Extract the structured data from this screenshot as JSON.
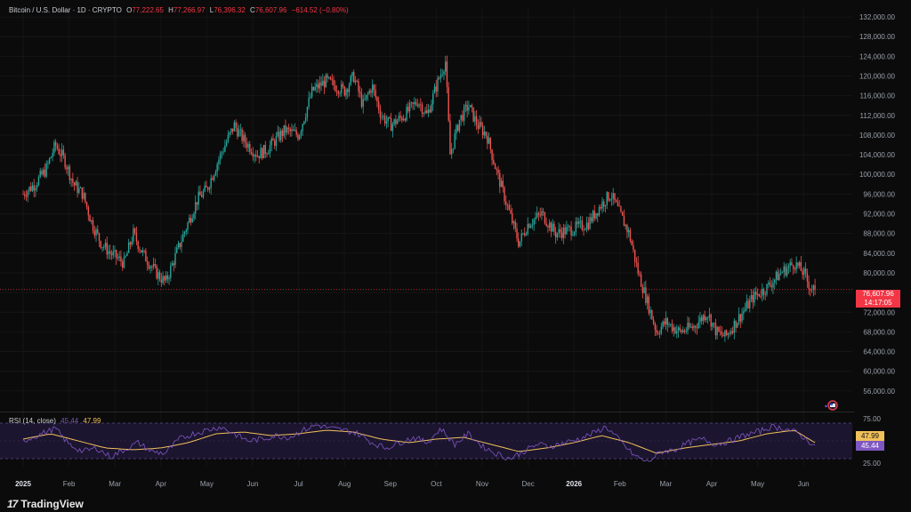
{
  "header": {
    "symbol": "Bitcoin / U.S. Dollar · 1D · CRYPTO",
    "o_label": "O",
    "o_value": "77,222.65",
    "h_label": "H",
    "h_value": "77,266.97",
    "l_label": "L",
    "l_value": "76,396.32",
    "c_label": "C",
    "c_value": "76,607.96",
    "change": "−614.52 (−0.80%)"
  },
  "price_tag": {
    "price": "76,607.96",
    "countdown": "14:17:05"
  },
  "rsi_header": {
    "label": "RSI (14, close)",
    "rsi": "45.44",
    "ma": "47.99"
  },
  "rsi_tags": {
    "ma": "47.99",
    "rsi": "45.44"
  },
  "brand": {
    "name": "TradingView"
  },
  "colors": {
    "up": "#26a69a",
    "down": "#ef5350",
    "rsi_line": "#7e57c2",
    "rsi_ma": "#f0c05a",
    "price_line": "#f23645",
    "band_fill": "#1c1530"
  },
  "icons": [
    "tradingview-logo-icon",
    "watchlist-flag-icon"
  ],
  "chart_data": [
    {
      "type": "candlestick",
      "title": "Bitcoin / U.S. Dollar · 1D · CRYPTO",
      "ylim": [
        52000,
        134000
      ],
      "y_ticks": [
        "132,000.00",
        "128,000.00",
        "124,000.00",
        "120,000.00",
        "116,000.00",
        "112,000.00",
        "108,000.00",
        "104,000.00",
        "100,000.00",
        "96,000.00",
        "92,000.00",
        "88,000.00",
        "84,000.00",
        "80,000.00",
        "76,000.00",
        "72,000.00",
        "68,000.00",
        "64,000.00",
        "60,000.00",
        "56,000.00"
      ],
      "x_labels": [
        "2025",
        "Feb",
        "Mar",
        "Apr",
        "May",
        "Jun",
        "Jul",
        "Aug",
        "Sep",
        "Oct",
        "Nov",
        "Dec",
        "2026",
        "Feb",
        "Mar",
        "Apr",
        "May",
        "Jun"
      ],
      "x_label_month_index": [
        0,
        1,
        2,
        3,
        4,
        5,
        6,
        7,
        8,
        9,
        10,
        11,
        12,
        13,
        14,
        15,
        16,
        17
      ],
      "last_price": 76607.96,
      "price_path_approx": [
        [
          0.0,
          96000
        ],
        [
          0.25,
          98000
        ],
        [
          0.5,
          101000
        ],
        [
          0.7,
          106000
        ],
        [
          0.9,
          103000
        ],
        [
          1.1,
          98000
        ],
        [
          1.3,
          96000
        ],
        [
          1.5,
          90000
        ],
        [
          1.7,
          86000
        ],
        [
          1.9,
          84000
        ],
        [
          2.2,
          82000
        ],
        [
          2.4,
          88000
        ],
        [
          2.6,
          84000
        ],
        [
          2.9,
          80000
        ],
        [
          3.1,
          78000
        ],
        [
          3.3,
          83000
        ],
        [
          3.5,
          88000
        ],
        [
          3.8,
          95000
        ],
        [
          4.0,
          97000
        ],
        [
          4.3,
          104000
        ],
        [
          4.6,
          110000
        ],
        [
          4.8,
          107000
        ],
        [
          5.1,
          104000
        ],
        [
          5.3,
          105000
        ],
        [
          5.5,
          107000
        ],
        [
          5.7,
          109000
        ],
        [
          6.0,
          108000
        ],
        [
          6.3,
          117000
        ],
        [
          6.6,
          119000
        ],
        [
          7.0,
          117000
        ],
        [
          7.2,
          120000
        ],
        [
          7.4,
          114000
        ],
        [
          7.6,
          118000
        ],
        [
          7.8,
          112000
        ],
        [
          8.0,
          110000
        ],
        [
          8.3,
          112000
        ],
        [
          8.6,
          115000
        ],
        [
          8.8,
          112000
        ],
        [
          9.0,
          118000
        ],
        [
          9.2,
          123000
        ],
        [
          9.3,
          104000
        ],
        [
          9.5,
          111000
        ],
        [
          9.7,
          114000
        ],
        [
          9.9,
          110000
        ],
        [
          10.1,
          108000
        ],
        [
          10.3,
          101000
        ],
        [
          10.5,
          95000
        ],
        [
          10.8,
          86000
        ],
        [
          11.0,
          90000
        ],
        [
          11.3,
          92000
        ],
        [
          11.6,
          88000
        ],
        [
          12.0,
          89000
        ],
        [
          12.3,
          90000
        ],
        [
          12.6,
          94000
        ],
        [
          12.8,
          96000
        ],
        [
          13.0,
          92000
        ],
        [
          13.2,
          88000
        ],
        [
          13.4,
          80000
        ],
        [
          13.6,
          74000
        ],
        [
          13.8,
          68000
        ],
        [
          14.0,
          70000
        ],
        [
          14.3,
          68000
        ],
        [
          14.6,
          69000
        ],
        [
          14.9,
          72000
        ],
        [
          15.1,
          68000
        ],
        [
          15.3,
          67000
        ],
        [
          15.6,
          71000
        ],
        [
          15.9,
          75000
        ],
        [
          16.2,
          77000
        ],
        [
          16.5,
          80000
        ],
        [
          16.8,
          82000
        ],
        [
          17.0,
          80000
        ],
        [
          17.15,
          77000
        ],
        [
          17.25,
          76607.96
        ]
      ]
    },
    {
      "type": "line",
      "title": "RSI (14, close)",
      "ylim": [
        20,
        80
      ],
      "y_ticks": [
        "75.00",
        "25.00"
      ],
      "bands": [
        70,
        30
      ],
      "series": [
        {
          "name": "RSI",
          "last": 45.44
        },
        {
          "name": "MA",
          "last": 47.99
        }
      ],
      "rsi_path_approx": [
        [
          0.0,
          50
        ],
        [
          0.4,
          58
        ],
        [
          0.7,
          64
        ],
        [
          1.0,
          46
        ],
        [
          1.3,
          38
        ],
        [
          1.6,
          42
        ],
        [
          1.9,
          32
        ],
        [
          2.2,
          40
        ],
        [
          2.5,
          48
        ],
        [
          2.8,
          38
        ],
        [
          3.1,
          36
        ],
        [
          3.4,
          52
        ],
        [
          3.7,
          58
        ],
        [
          4.0,
          62
        ],
        [
          4.3,
          66
        ],
        [
          4.6,
          58
        ],
        [
          4.9,
          50
        ],
        [
          5.2,
          52
        ],
        [
          5.5,
          56
        ],
        [
          5.8,
          54
        ],
        [
          6.1,
          62
        ],
        [
          6.4,
          68
        ],
        [
          6.7,
          64
        ],
        [
          7.0,
          62
        ],
        [
          7.3,
          58
        ],
        [
          7.6,
          48
        ],
        [
          7.9,
          42
        ],
        [
          8.2,
          48
        ],
        [
          8.5,
          54
        ],
        [
          8.8,
          48
        ],
        [
          9.1,
          64
        ],
        [
          9.4,
          46
        ],
        [
          9.7,
          58
        ],
        [
          10.0,
          44
        ],
        [
          10.3,
          36
        ],
        [
          10.6,
          30
        ],
        [
          10.9,
          38
        ],
        [
          11.2,
          46
        ],
        [
          11.5,
          44
        ],
        [
          11.8,
          48
        ],
        [
          12.1,
          52
        ],
        [
          12.4,
          58
        ],
        [
          12.7,
          66
        ],
        [
          13.0,
          50
        ],
        [
          13.3,
          34
        ],
        [
          13.6,
          26
        ],
        [
          13.9,
          38
        ],
        [
          14.2,
          40
        ],
        [
          14.5,
          48
        ],
        [
          14.8,
          52
        ],
        [
          15.1,
          46
        ],
        [
          15.4,
          50
        ],
        [
          15.7,
          56
        ],
        [
          16.0,
          60
        ],
        [
          16.3,
          66
        ],
        [
          16.6,
          64
        ],
        [
          16.9,
          58
        ],
        [
          17.1,
          50
        ],
        [
          17.25,
          45.44
        ]
      ],
      "ma_path_approx": [
        [
          0.0,
          52
        ],
        [
          0.6,
          58
        ],
        [
          1.2,
          50
        ],
        [
          1.8,
          42
        ],
        [
          2.4,
          40
        ],
        [
          3.0,
          42
        ],
        [
          3.6,
          48
        ],
        [
          4.2,
          58
        ],
        [
          4.8,
          60
        ],
        [
          5.4,
          56
        ],
        [
          6.0,
          58
        ],
        [
          6.6,
          62
        ],
        [
          7.2,
          60
        ],
        [
          7.8,
          52
        ],
        [
          8.4,
          48
        ],
        [
          9.0,
          52
        ],
        [
          9.6,
          54
        ],
        [
          10.2,
          46
        ],
        [
          10.8,
          38
        ],
        [
          11.4,
          42
        ],
        [
          12.0,
          48
        ],
        [
          12.6,
          56
        ],
        [
          13.2,
          48
        ],
        [
          13.8,
          36
        ],
        [
          14.4,
          42
        ],
        [
          15.0,
          46
        ],
        [
          15.6,
          50
        ],
        [
          16.2,
          58
        ],
        [
          16.8,
          62
        ],
        [
          17.25,
          47.99
        ]
      ]
    }
  ]
}
